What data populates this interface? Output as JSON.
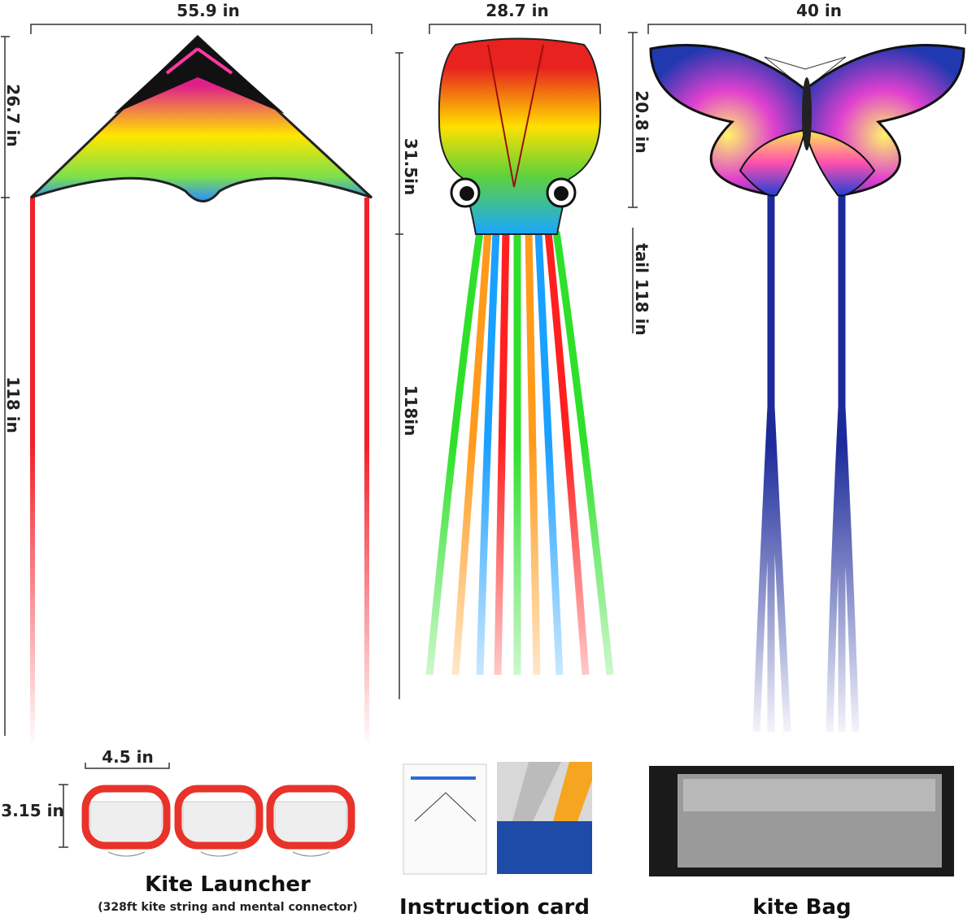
{
  "kites": [
    {
      "width": "55.9 in",
      "height": "26.7 in",
      "tail": "118 in"
    },
    {
      "width": "28.7 in",
      "height": "31.5in",
      "tail": "118in"
    },
    {
      "width": "40 in",
      "height": "20.8 in",
      "tail": "tail 118 in"
    }
  ],
  "accessories": {
    "launcher": {
      "width": "4.5 in",
      "height": "3.15 in",
      "title": "Kite Launcher",
      "subtitle": "(328ft kite string and mental connector)"
    },
    "card": {
      "title": "Instruction card"
    },
    "bag": {
      "title": "kite Bag"
    }
  }
}
